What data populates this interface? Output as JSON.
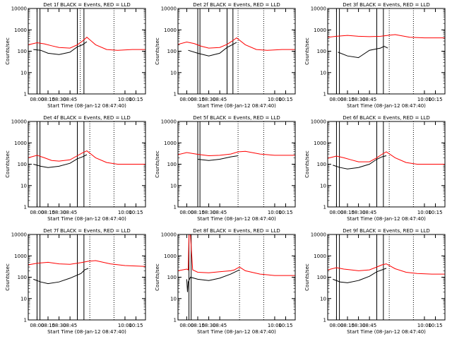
{
  "figure": {
    "colors": {
      "background": "#ffffff",
      "axes": "#000000",
      "events": "#000000",
      "lld": "#ff0000"
    }
  },
  "chart_data": [
    {
      "type": "line",
      "title": "Det 1f BLACK = Events, RED = LLD",
      "xlabel": "Start Time (08-Jan-12 08:47:40)",
      "ylabel": "Counts/sec",
      "yscale": "log",
      "ylim": [
        1,
        10000
      ],
      "xlim": [
        "07:48",
        "10:28"
      ],
      "xticks": [
        "08:00",
        "08:15",
        "08:30",
        "08:45",
        "10:00",
        "10:15"
      ],
      "yticks": [
        "1",
        "10",
        "100",
        "1000",
        "10000"
      ],
      "solid_vlines": [
        "08:00",
        "08:04",
        "08:55",
        "09:04"
      ],
      "dotted_vlines": [
        "08:59",
        "09:45"
      ],
      "series": [
        {
          "x": [
            "07:48",
            "08:00",
            "08:10",
            "08:20",
            "08:30",
            "08:45",
            "08:55",
            "09:02",
            "09:08",
            "09:20",
            "09:35",
            "09:50",
            "10:10",
            "10:28"
          ],
          "values": [
            200,
            250,
            220,
            180,
            150,
            140,
            200,
            300,
            450,
            200,
            120,
            110,
            120,
            120
          ]
        },
        {
          "x": [
            "07:55",
            "08:05",
            "08:15",
            "08:30",
            "08:45",
            "08:55",
            "09:02",
            "09:08"
          ],
          "values": [
            120,
            110,
            80,
            70,
            90,
            160,
            200,
            280
          ]
        }
      ]
    },
    {
      "type": "line",
      "title": "Det 2f BLACK = Events, RED = LLD",
      "xlabel": "Start Time (08-Jan-12 08:47:40)",
      "ylabel": "Counts/sec",
      "yscale": "log",
      "ylim": [
        1,
        10000
      ],
      "xlim": [
        "07:48",
        "10:28"
      ],
      "xticks": [
        "08:00",
        "08:15",
        "08:30",
        "08:45",
        "10:00",
        "10:15"
      ],
      "yticks": [
        "1",
        "10",
        "100",
        "1000",
        "10000"
      ],
      "solid_vlines": [
        "08:15",
        "08:18",
        "08:55",
        "09:03"
      ],
      "dotted_vlines": [
        "09:10",
        "09:45"
      ],
      "series": [
        {
          "x": [
            "07:48",
            "08:00",
            "08:10",
            "08:20",
            "08:30",
            "08:45",
            "08:55",
            "09:02",
            "09:08",
            "09:20",
            "09:35",
            "09:50",
            "10:10",
            "10:28"
          ],
          "values": [
            210,
            270,
            230,
            170,
            140,
            150,
            210,
            300,
            420,
            200,
            120,
            110,
            120,
            120
          ]
        },
        {
          "x": [
            "08:02",
            "08:15",
            "08:30",
            "08:45",
            "08:55",
            "09:02",
            "09:08"
          ],
          "values": [
            110,
            80,
            60,
            80,
            150,
            200,
            260
          ]
        }
      ]
    },
    {
      "type": "line",
      "title": "Det 3f BLACK = Events, RED = LLD",
      "xlabel": "Start Time (08-Jan-12 08:47:40)",
      "ylabel": "Counts/sec",
      "yscale": "log",
      "ylim": [
        1,
        10000
      ],
      "xlim": [
        "07:48",
        "10:28"
      ],
      "xticks": [
        "08:00",
        "08:15",
        "08:30",
        "08:45",
        "10:00",
        "10:15"
      ],
      "yticks": [
        "1",
        "10",
        "100",
        "1000",
        "10000"
      ],
      "solid_vlines": [
        "08:00",
        "08:04",
        "08:55",
        "09:04"
      ],
      "dotted_vlines": [
        "09:12",
        "09:45"
      ],
      "series": [
        {
          "x": [
            "07:48",
            "08:00",
            "08:15",
            "08:30",
            "08:45",
            "09:00",
            "09:10",
            "09:20",
            "09:40",
            "10:00",
            "10:28"
          ],
          "values": [
            450,
            500,
            550,
            500,
            480,
            500,
            550,
            600,
            450,
            420,
            420
          ]
        },
        {
          "x": [
            "08:02",
            "08:15",
            "08:30",
            "08:45",
            "09:00",
            "09:05",
            "09:10"
          ],
          "values": [
            90,
            60,
            50,
            110,
            140,
            170,
            140
          ]
        }
      ]
    },
    {
      "type": "line",
      "title": "Det 4f BLACK = Events, RED = LLD",
      "xlabel": "Start Time (08-Jan-12 08:47:40)",
      "ylabel": "Counts/sec",
      "yscale": "log",
      "ylim": [
        1,
        10000
      ],
      "xlim": [
        "07:48",
        "10:28"
      ],
      "xticks": [
        "08:00",
        "08:15",
        "08:30",
        "08:45",
        "10:00",
        "10:15"
      ],
      "yticks": [
        "1",
        "10",
        "100",
        "1000",
        "10000"
      ],
      "solid_vlines": [
        "08:00",
        "08:04",
        "08:55",
        "09:04"
      ],
      "dotted_vlines": [
        "09:12",
        "09:45"
      ],
      "series": [
        {
          "x": [
            "07:48",
            "08:00",
            "08:10",
            "08:20",
            "08:30",
            "08:45",
            "08:55",
            "09:02",
            "09:08",
            "09:20",
            "09:35",
            "09:50",
            "10:10",
            "10:28"
          ],
          "values": [
            200,
            260,
            200,
            150,
            140,
            160,
            250,
            340,
            420,
            200,
            120,
            100,
            100,
            100
          ]
        },
        {
          "x": [
            "07:55",
            "08:05",
            "08:15",
            "08:30",
            "08:45",
            "08:55",
            "09:02",
            "09:08"
          ],
          "values": [
            100,
            80,
            70,
            80,
            110,
            180,
            220,
            280
          ]
        }
      ]
    },
    {
      "type": "line",
      "title": "Det 5f BLACK = Events, RED = LLD",
      "xlabel": "Start Time (08-Jan-12 08:47:40)",
      "ylabel": "Counts/sec",
      "yscale": "log",
      "ylim": [
        1,
        10000
      ],
      "xlim": [
        "07:48",
        "10:28"
      ],
      "xticks": [
        "08:00",
        "08:15",
        "08:30",
        "08:45",
        "10:00",
        "10:15"
      ],
      "yticks": [
        "1",
        "10",
        "100",
        "1000",
        "10000"
      ],
      "solid_vlines": [
        "08:15",
        "08:18"
      ],
      "dotted_vlines": [
        "09:10",
        "09:45"
      ],
      "series": [
        {
          "x": [
            "07:48",
            "08:00",
            "08:15",
            "08:30",
            "08:45",
            "09:00",
            "09:10",
            "09:20",
            "09:40",
            "10:00",
            "10:28"
          ],
          "values": [
            280,
            350,
            290,
            250,
            260,
            300,
            380,
            400,
            300,
            260,
            260
          ]
        },
        {
          "x": [
            "08:15",
            "08:30",
            "08:45",
            "09:00",
            "09:10"
          ],
          "values": [
            170,
            150,
            170,
            220,
            250
          ]
        }
      ]
    },
    {
      "type": "line",
      "title": "Det 6f BLACK = Events, RED = LLD",
      "xlabel": "Start Time (08-Jan-12 08:47:40)",
      "ylabel": "Counts/sec",
      "yscale": "log",
      "ylim": [
        1,
        10000
      ],
      "xlim": [
        "07:48",
        "10:28"
      ],
      "xticks": [
        "08:00",
        "08:15",
        "08:30",
        "08:45",
        "10:00",
        "10:15"
      ],
      "yticks": [
        "1",
        "10",
        "100",
        "1000",
        "10000"
      ],
      "solid_vlines": [
        "08:00",
        "08:04",
        "08:55",
        "09:04"
      ],
      "dotted_vlines": [
        "09:12",
        "09:45"
      ],
      "series": [
        {
          "x": [
            "07:48",
            "08:00",
            "08:10",
            "08:20",
            "08:30",
            "08:45",
            "08:55",
            "09:02",
            "09:08",
            "09:20",
            "09:35",
            "09:50",
            "10:10",
            "10:28"
          ],
          "values": [
            190,
            240,
            200,
            160,
            130,
            130,
            200,
            290,
            380,
            200,
            120,
            100,
            100,
            100
          ]
        },
        {
          "x": [
            "07:55",
            "08:05",
            "08:15",
            "08:30",
            "08:45",
            "08:55",
            "09:02",
            "09:08"
          ],
          "values": [
            90,
            70,
            60,
            70,
            100,
            170,
            220,
            250
          ]
        }
      ]
    },
    {
      "type": "line",
      "title": "Det 7f BLACK = Events, RED = LLD",
      "xlabel": "Start Time (08-Jan-12 08:47:40)",
      "ylabel": "Counts/sec",
      "yscale": "log",
      "ylim": [
        1,
        10000
      ],
      "xlim": [
        "07:48",
        "10:28"
      ],
      "xticks": [
        "08:00",
        "08:15",
        "08:30",
        "08:45",
        "10:00",
        "10:15"
      ],
      "yticks": [
        "1",
        "10",
        "100",
        "1000",
        "10000"
      ],
      "solid_vlines": [
        "08:00",
        "08:04",
        "08:55",
        "09:04"
      ],
      "dotted_vlines": [
        "09:12",
        "09:45"
      ],
      "series": [
        {
          "x": [
            "07:48",
            "08:00",
            "08:15",
            "08:30",
            "08:45",
            "09:00",
            "09:10",
            "09:20",
            "09:40",
            "10:00",
            "10:28"
          ],
          "values": [
            380,
            450,
            500,
            420,
            400,
            480,
            560,
            600,
            420,
            350,
            320
          ]
        },
        {
          "x": [
            "07:55",
            "08:05",
            "08:15",
            "08:30",
            "08:45",
            "09:00",
            "09:05",
            "09:10"
          ],
          "values": [
            80,
            60,
            50,
            60,
            90,
            150,
            220,
            260
          ]
        }
      ]
    },
    {
      "type": "line",
      "title": "Det 8f BLACK = Events, RED = LLD",
      "xlabel": "Start Time (08-Jan-12 08:47:40)",
      "ylabel": "Counts/sec",
      "yscale": "log",
      "ylim": [
        1,
        10000
      ],
      "xlim": [
        "07:48",
        "10:28"
      ],
      "xticks": [
        "08:00",
        "08:15",
        "08:30",
        "08:45",
        "10:00",
        "10:15"
      ],
      "yticks": [
        "1",
        "10",
        "100",
        "1000",
        "10000"
      ],
      "solid_vlines": [
        "08:03",
        "08:06"
      ],
      "dotted_vlines": [
        "09:12",
        "09:45"
      ],
      "series": [
        {
          "x": [
            "07:48",
            "08:00",
            "08:02",
            "08:03",
            "08:05",
            "08:08",
            "08:15",
            "08:30",
            "08:45",
            "09:00",
            "09:05",
            "09:12",
            "09:20",
            "09:40",
            "10:00",
            "10:28"
          ],
          "values": [
            200,
            240,
            220,
            10000,
            10000,
            220,
            170,
            160,
            180,
            200,
            220,
            300,
            200,
            140,
            120,
            120
          ]
        },
        {
          "x": [
            "08:00",
            "08:01",
            "08:02",
            "08:05",
            "08:15",
            "08:30",
            "08:45",
            "09:00",
            "09:12"
          ],
          "values": [
            80,
            20,
            60,
            100,
            80,
            70,
            90,
            140,
            220
          ]
        }
      ]
    },
    {
      "type": "line",
      "title": "Det 9f BLACK = Events, RED = LLD",
      "xlabel": "Start Time (08-Jan-12 08:47:40)",
      "ylabel": "Counts/sec",
      "yscale": "log",
      "ylim": [
        1,
        10000
      ],
      "xlim": [
        "07:48",
        "10:28"
      ],
      "xticks": [
        "08:00",
        "08:15",
        "08:30",
        "08:45",
        "10:00",
        "10:15"
      ],
      "yticks": [
        "1",
        "10",
        "100",
        "1000",
        "10000"
      ],
      "solid_vlines": [
        "08:00",
        "08:04",
        "08:55",
        "09:04"
      ],
      "dotted_vlines": [
        "09:12",
        "09:45"
      ],
      "series": [
        {
          "x": [
            "07:48",
            "08:00",
            "08:10",
            "08:20",
            "08:30",
            "08:45",
            "08:55",
            "09:02",
            "09:08",
            "09:20",
            "09:35",
            "09:50",
            "10:10",
            "10:28"
          ],
          "values": [
            220,
            280,
            240,
            220,
            200,
            220,
            300,
            380,
            420,
            250,
            170,
            150,
            140,
            140
          ]
        },
        {
          "x": [
            "07:55",
            "08:05",
            "08:15",
            "08:30",
            "08:45",
            "08:55",
            "09:02",
            "09:08"
          ],
          "values": [
            80,
            60,
            55,
            70,
            110,
            180,
            220,
            260
          ]
        }
      ]
    }
  ]
}
